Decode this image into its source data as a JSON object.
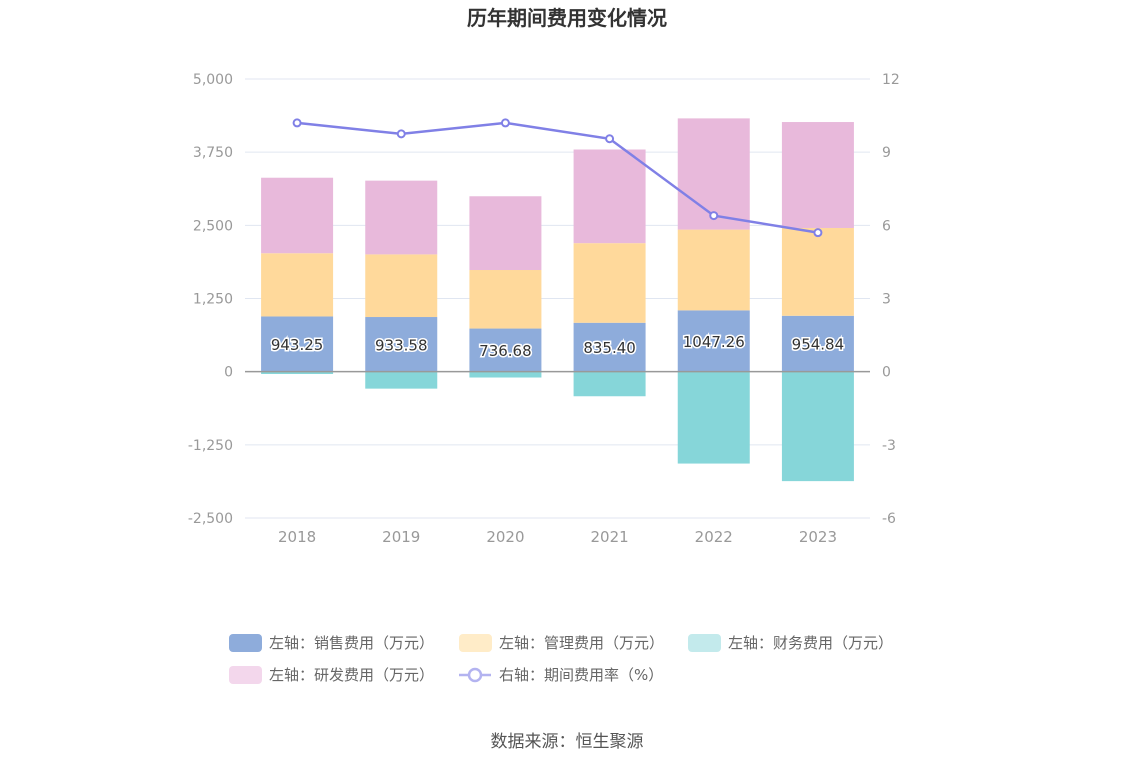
{
  "chart_data": {
    "type": "bar",
    "title": "历年期间费用变化情况",
    "categories": [
      "2018",
      "2019",
      "2020",
      "2021",
      "2022",
      "2023"
    ],
    "stacked": true,
    "y_left": {
      "min": -2500,
      "max": 5000,
      "ticks": [
        "5,000",
        "3,750",
        "2,500",
        "1,250",
        "0",
        "-1,250",
        "-2,500"
      ]
    },
    "y_right": {
      "min": -6,
      "max": 12,
      "ticks": [
        "12",
        "9",
        "6",
        "3",
        "0",
        "-3",
        "-6"
      ]
    },
    "grid": true,
    "legend_position": "bottom",
    "series": [
      {
        "name": "左轴：销售费用（万元）",
        "axis": "left",
        "type": "bar",
        "color": "#8eacdb",
        "values": [
          943.25,
          933.58,
          736.68,
          835.4,
          1047.26,
          954.84
        ],
        "labels": [
          "943.25",
          "933.58",
          "736.68",
          "835.40",
          "1047.26",
          "954.84"
        ]
      },
      {
        "name": "左轴：管理费用（万元）",
        "axis": "left",
        "type": "bar",
        "color": "#ffd99b",
        "values": [
          1080,
          1070,
          1000,
          1360,
          1380,
          1500
        ]
      },
      {
        "name": "左轴：财务费用（万元）",
        "axis": "left",
        "type": "bar",
        "color": "#86d6d9",
        "values": [
          -40,
          -290,
          -100,
          -420,
          -1570,
          -1870
        ]
      },
      {
        "name": "左轴：研发费用（万元）",
        "axis": "left",
        "type": "bar",
        "color": "#e8b9db",
        "values": [
          1290,
          1260,
          1260,
          1600,
          1900,
          1810
        ]
      },
      {
        "name": "右轴：期间费用率（%）",
        "axis": "right",
        "type": "line",
        "color": "#8080e6",
        "values": [
          10.2,
          9.75,
          10.2,
          9.55,
          6.4,
          5.7
        ]
      }
    ]
  },
  "legend_colors": {
    "sales": "#8eacdb",
    "admin": "#ffecc8",
    "finance": "#c3eaec",
    "rd": "#f3d7ec",
    "line": "#b3b3f0"
  },
  "source": "数据来源：恒生聚源"
}
